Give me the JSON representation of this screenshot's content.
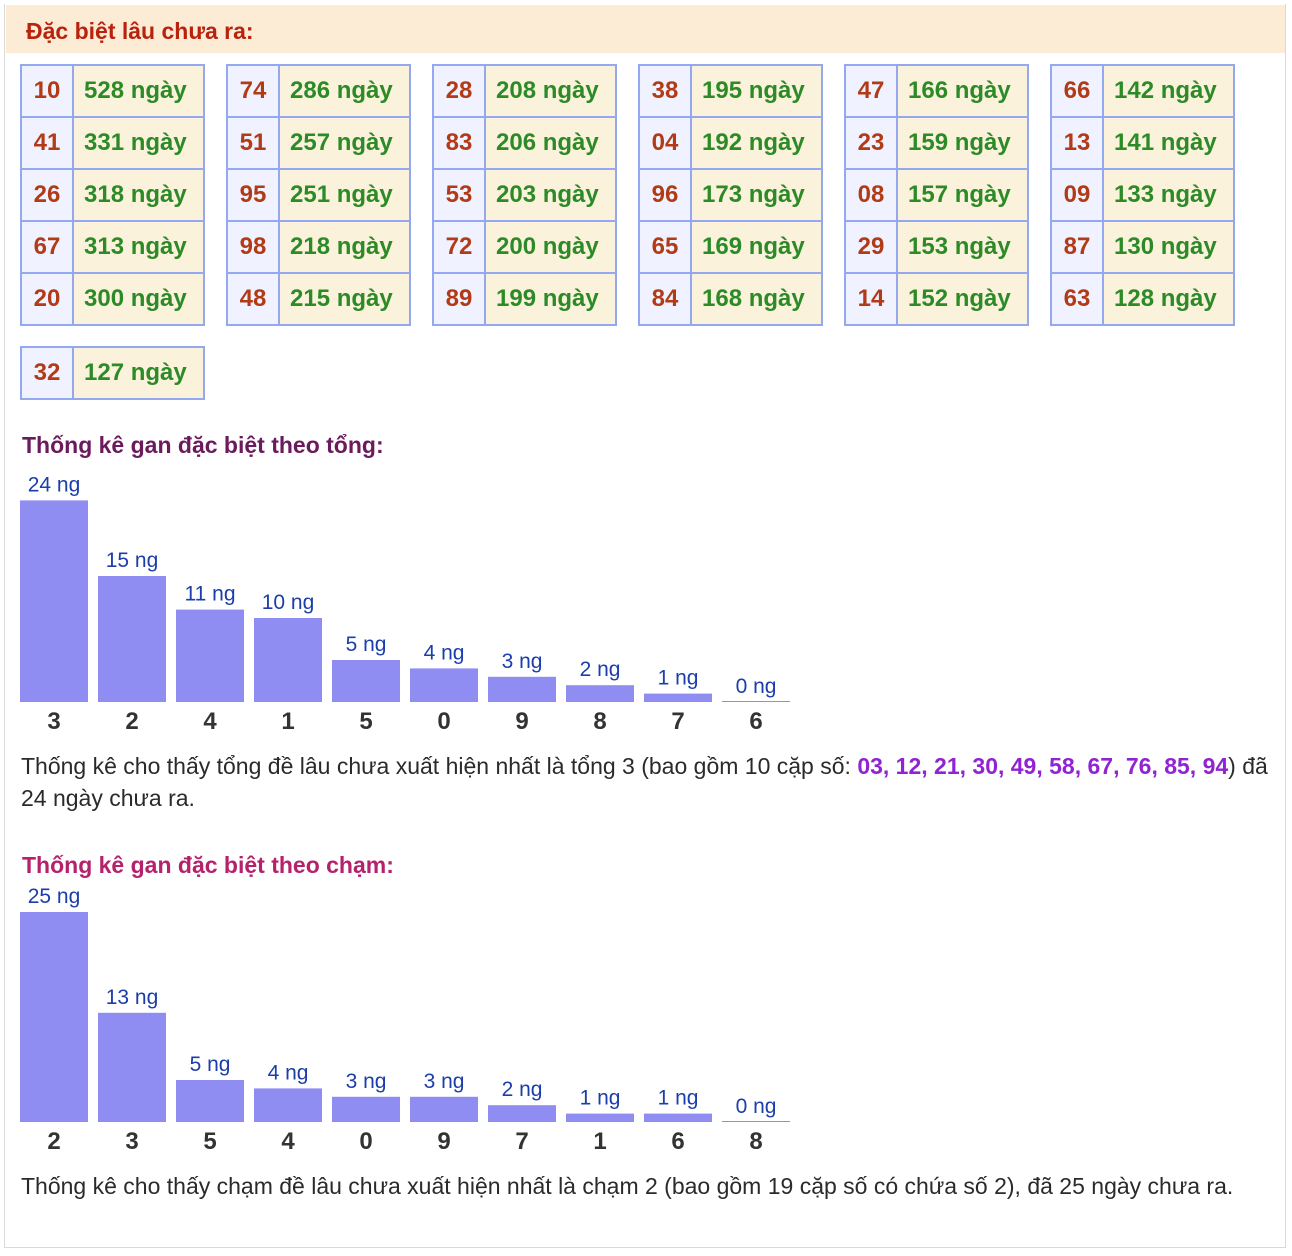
{
  "header": {
    "title": "Đặc biệt lâu chưa ra:"
  },
  "gan_tables": [
    {
      "rows": [
        {
          "num": "10",
          "days": "528 ngày"
        },
        {
          "num": "41",
          "days": "331 ngày"
        },
        {
          "num": "26",
          "days": "318 ngày"
        },
        {
          "num": "67",
          "days": "313 ngày"
        },
        {
          "num": "20",
          "days": "300 ngày"
        }
      ]
    },
    {
      "rows": [
        {
          "num": "74",
          "days": "286 ngày"
        },
        {
          "num": "51",
          "days": "257 ngày"
        },
        {
          "num": "95",
          "days": "251 ngày"
        },
        {
          "num": "98",
          "days": "218 ngày"
        },
        {
          "num": "48",
          "days": "215 ngày"
        }
      ]
    },
    {
      "rows": [
        {
          "num": "28",
          "days": "208 ngày"
        },
        {
          "num": "83",
          "days": "206 ngày"
        },
        {
          "num": "53",
          "days": "203 ngày"
        },
        {
          "num": "72",
          "days": "200 ngày"
        },
        {
          "num": "89",
          "days": "199 ngày"
        }
      ]
    },
    {
      "rows": [
        {
          "num": "38",
          "days": "195 ngày"
        },
        {
          "num": "04",
          "days": "192 ngày"
        },
        {
          "num": "96",
          "days": "173 ngày"
        },
        {
          "num": "65",
          "days": "169 ngày"
        },
        {
          "num": "84",
          "days": "168 ngày"
        }
      ]
    },
    {
      "rows": [
        {
          "num": "47",
          "days": "166 ngày"
        },
        {
          "num": "23",
          "days": "159 ngày"
        },
        {
          "num": "08",
          "days": "157 ngày"
        },
        {
          "num": "29",
          "days": "153 ngày"
        },
        {
          "num": "14",
          "days": "152 ngày"
        }
      ]
    },
    {
      "rows": [
        {
          "num": "66",
          "days": "142 ngày"
        },
        {
          "num": "13",
          "days": "141 ngày"
        },
        {
          "num": "09",
          "days": "133 ngày"
        },
        {
          "num": "87",
          "days": "130 ngày"
        },
        {
          "num": "63",
          "days": "128 ngày"
        }
      ]
    },
    {
      "rows": [
        {
          "num": "32",
          "days": "127 ngày"
        }
      ]
    }
  ],
  "sum_section": {
    "title": "Thống kê gan đặc biệt theo tổng:",
    "title_color": "#6b1a5c",
    "note_before": "Thống kê cho thấy tổng đề lâu chưa xuất hiện nhất là tổng 3 (bao gồm 10 cặp số: ",
    "note_numbers": "03, 12, 21, 30, 49, 58, 67, 76, 85, 94",
    "note_after": ") đã 24 ngày chưa ra."
  },
  "touch_section": {
    "title": "Thống kê gan đặc biệt theo chạm:",
    "title_color": "#b5216a",
    "note": "Thống kê cho thấy chạm đề lâu chưa xuất hiện nhất là chạm 2 (bao gồm 19 cặp số có chứa số 2), đã 25 ngày chưa ra."
  },
  "chart_data": [
    {
      "type": "bar",
      "categories": [
        "3",
        "2",
        "4",
        "1",
        "5",
        "0",
        "9",
        "8",
        "7",
        "6"
      ],
      "values": [
        24,
        15,
        11,
        10,
        5,
        4,
        3,
        2,
        1,
        0
      ],
      "value_labels": [
        "24 ng",
        "15 ng",
        "11 ng",
        "10 ng",
        "5 ng",
        "4 ng",
        "3 ng",
        "2 ng",
        "1 ng",
        "0 ng"
      ],
      "bar_color": "#8f8cf2"
    },
    {
      "type": "bar",
      "categories": [
        "2",
        "3",
        "5",
        "4",
        "0",
        "9",
        "7",
        "1",
        "6",
        "8"
      ],
      "values": [
        25,
        13,
        5,
        4,
        3,
        3,
        2,
        1,
        1,
        0
      ],
      "value_labels": [
        "25 ng",
        "13 ng",
        "5 ng",
        "4 ng",
        "3 ng",
        "3 ng",
        "2 ng",
        "1 ng",
        "1 ng",
        "0 ng"
      ],
      "bar_color": "#8f8cf2"
    }
  ]
}
